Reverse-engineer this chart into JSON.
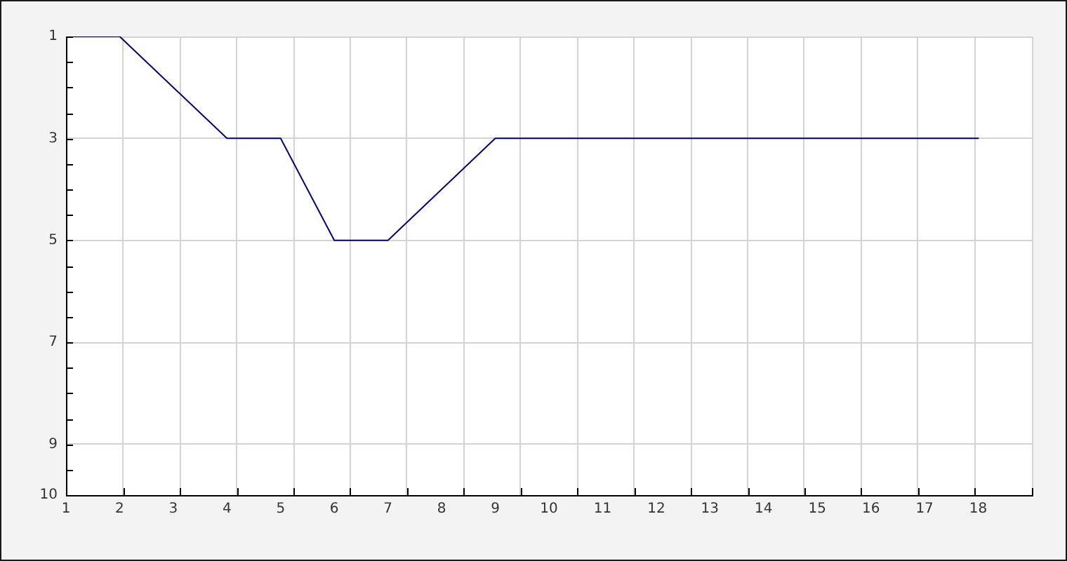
{
  "chart_data": {
    "type": "line",
    "x": [
      1,
      2,
      4,
      5,
      6,
      7,
      9,
      18
    ],
    "series": [
      {
        "color": "#000080",
        "values": [
          1,
          1,
          3,
          3,
          5,
          5,
          3,
          3
        ]
      }
    ],
    "xlim": [
      1,
      19
    ],
    "xticks": [
      1,
      {
        "value": 2.06,
        "label": null
      },
      2,
      {
        "value": 3.12,
        "label": null
      },
      3,
      {
        "value": 4.18,
        "label": null
      },
      4,
      {
        "value": 5.24,
        "label": null
      },
      5,
      {
        "value": 6.29,
        "label": null
      },
      6,
      {
        "value": 7.35,
        "label": null
      },
      7,
      {
        "value": 8.41,
        "label": null
      },
      8,
      {
        "value": 9.47,
        "label": null
      },
      9,
      10,
      {
        "value": 10.53,
        "label": null
      },
      11,
      {
        "value": 11.59,
        "label": null
      },
      12,
      {
        "value": 12.65,
        "label": null
      },
      13,
      {
        "value": 13.71,
        "label": null
      },
      14,
      {
        "value": 14.76,
        "label": null
      },
      15,
      {
        "value": 15.82,
        "label": null
      },
      16,
      {
        "value": 16.88,
        "label": null
      },
      17,
      {
        "value": 17.94,
        "label": null
      },
      18,
      {
        "value": 19,
        "label": null
      }
    ],
    "ylim": [
      10,
      1
    ],
    "yticks": [
      1,
      {
        "value": 1.5,
        "label": null
      },
      {
        "value": 2,
        "label": null
      },
      {
        "value": 2.5,
        "label": null
      },
      3,
      {
        "value": 3.5,
        "label": null
      },
      {
        "value": 4,
        "label": null
      },
      {
        "value": 4.5,
        "label": null
      },
      5,
      {
        "value": 5.5,
        "label": null
      },
      {
        "value": 6,
        "label": null
      },
      {
        "value": 6.5,
        "label": null
      },
      7,
      {
        "value": 7.5,
        "label": null
      },
      {
        "value": 8,
        "label": null
      },
      {
        "value": 8.5,
        "label": null
      },
      9,
      {
        "value": 9.5,
        "label": null
      },
      10
    ],
    "grid": true,
    "marker": "none",
    "line_style": "solid"
  }
}
